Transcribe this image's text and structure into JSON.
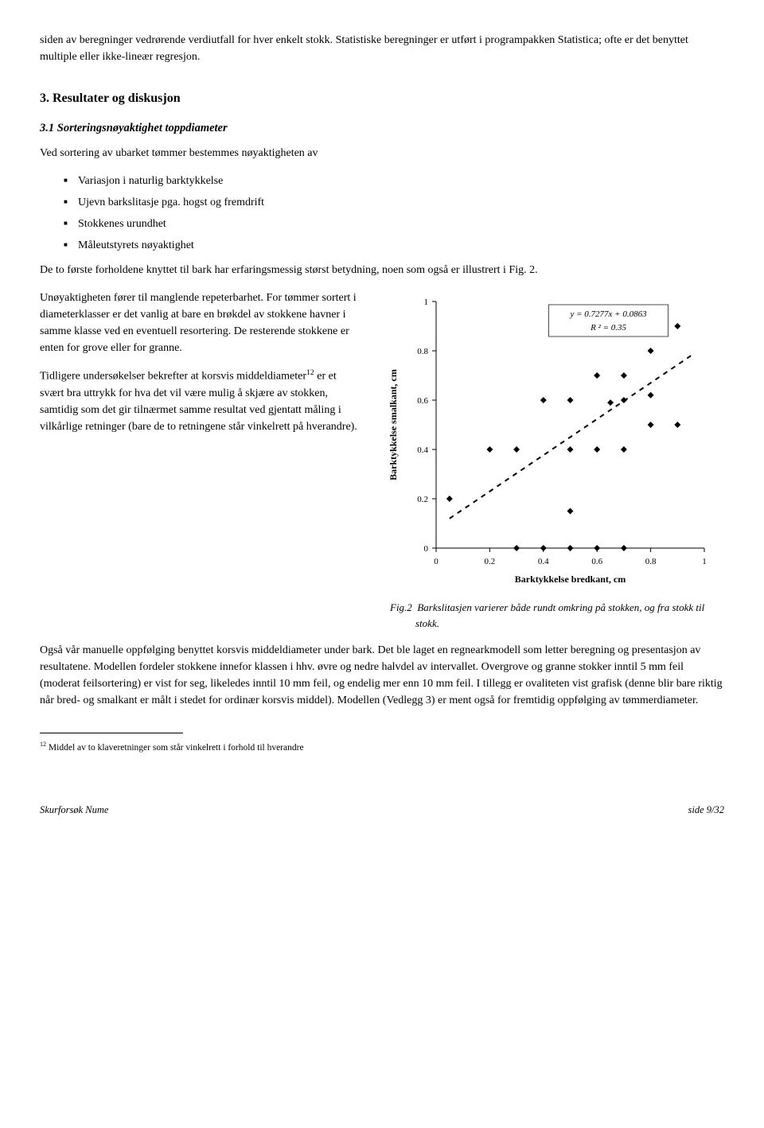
{
  "intro": "siden av beregninger vedrørende verdiutfall for hver enkelt stokk. Statistiske beregninger er utført i programpakken Statistica; ofte er det benyttet multiple eller ikke-lineær regresjon.",
  "section": {
    "number": "3.",
    "title": "Resultater og diskusjon"
  },
  "subsection": {
    "number": "3.1",
    "title": "Sorteringsnøyaktighet toppdiameter"
  },
  "para1": "Ved sortering av ubarket tømmer bestemmes nøyaktigheten av",
  "bullets": [
    "Variasjon i naturlig barktykkelse",
    "Ujevn barkslitasje pga. hogst og fremdrift",
    "Stokkenes urundhet",
    "Måleutstyrets nøyaktighet"
  ],
  "para2": "De to første forholdene knyttet til bark har erfaringsmessig størst betydning, noen som også er illustrert i Fig. 2.",
  "para3": "Unøyaktigheten fører til manglende repeterbarhet. For tømmer sortert i diameterklasser er det vanlig at bare en brøkdel av stokkene havner i samme klasse ved en eventuell resortering. De resterende stokkene er enten for grove eller for granne.",
  "para4_a": "Tidligere undersøkelser bekrefter at korsvis middeldiameter",
  "para4_sup": "12",
  "para4_b": " er et svært bra uttrykk for hva det vil være mulig å skjære av stokken, samtidig som det gir tilnærmet samme resultat ved gjentatt måling i vilkårlige retninger (bare de to retningene står vinkelrett på hverandre).",
  "para5": "Også vår manuelle oppfølging benyttet korsvis middeldiameter under bark. Det ble laget en regnearkmodell som letter beregning og presentasjon av resultatene. Modellen fordeler stokkene innefor klassen i hhv. øvre og nedre halvdel av intervallet. Overgrove og granne stokker inntil 5 mm feil (moderat feilsortering) er vist for seg, likeledes inntil 10 mm feil, og endelig mer enn 10 mm feil. I tillegg er ovaliteten vist grafisk (denne blir bare riktig når bred- og smalkant er målt i stedet for ordinær korsvis middel). Modellen (Vedlegg 3) er ment også for fremtidig oppfølging av tømmerdiameter.",
  "chart": {
    "type": "scatter",
    "equation": "y = 0.7277x + 0.0863",
    "r2": "R ² = 0.35",
    "xlabel": "Barktykkelse bredkant, cm",
    "ylabel": "Barktykkelse smalkant, cm",
    "xlim": [
      0,
      1
    ],
    "ylim": [
      0,
      1
    ],
    "xtick_step": 0.2,
    "ytick_step": 0.2,
    "xticks": [
      "0",
      "0.2",
      "0.4",
      "0.6",
      "0.8",
      "1"
    ],
    "yticks": [
      "0",
      "0.2",
      "0.4",
      "0.6",
      "0.8",
      "1"
    ],
    "axis_color": "#000000",
    "background_color": "#ffffff",
    "marker_color": "#000000",
    "marker_size": 8,
    "marker_style": "diamond",
    "line_color": "#000000",
    "trend_dash": "6,6",
    "trend_x1": 0.05,
    "trend_y1": 0.12,
    "trend_x2": 0.95,
    "trend_y2": 0.78,
    "points": [
      [
        0.05,
        0.2
      ],
      [
        0.2,
        0.4
      ],
      [
        0.3,
        0.0
      ],
      [
        0.3,
        0.4
      ],
      [
        0.4,
        0.0
      ],
      [
        0.4,
        0.6
      ],
      [
        0.5,
        0.0
      ],
      [
        0.5,
        0.15
      ],
      [
        0.5,
        0.4
      ],
      [
        0.5,
        0.6
      ],
      [
        0.6,
        0.0
      ],
      [
        0.6,
        0.4
      ],
      [
        0.6,
        0.7
      ],
      [
        0.65,
        0.59
      ],
      [
        0.7,
        0.0
      ],
      [
        0.7,
        0.4
      ],
      [
        0.7,
        0.6
      ],
      [
        0.7,
        0.7
      ],
      [
        0.8,
        0.5
      ],
      [
        0.8,
        0.62
      ],
      [
        0.8,
        0.8
      ],
      [
        0.9,
        0.9
      ],
      [
        0.9,
        0.5
      ]
    ],
    "caption_prefix": "Fig.2",
    "caption_text": "Barkslitasjen varierer både rundt omkring på stokken, og fra stokk til stokk.",
    "tick_fontsize": 11,
    "label_fontsize": 12,
    "label_fontweight": "bold",
    "eq_fontsize": 11
  },
  "footnote": {
    "num": "12",
    "text": "Middel av to klaveretninger som står vinkelrett i forhold til hverandre"
  },
  "footer": {
    "left": "Skurforsøk Nume",
    "right": "side 9/32"
  }
}
